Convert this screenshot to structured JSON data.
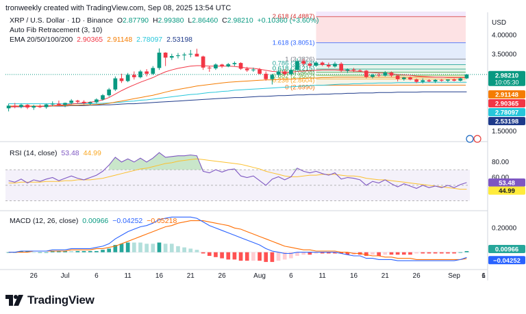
{
  "credit": "tronweekly created with TradingView.com, Sep 08, 2025 13:54 UTC",
  "symbol_line": {
    "symbol": "XRP / U.S. Dollar · 1D · Binance",
    "o_label": "O",
    "o": "2.87790",
    "h_label": "H",
    "h": "2.99380",
    "l_label": "L",
    "l": "2.86460",
    "c_label": "C",
    "c": "2.98210",
    "change": "+0.10360 (+3.60%)"
  },
  "fib_line": "Auto Fib Retracement (3, 10)",
  "ema_line": {
    "label": "EMA 20/50/100/200",
    "v20": "2.90365",
    "v50": "2.91148",
    "v100": "2.78097",
    "v200": "2.53198"
  },
  "rsi_line": {
    "label": "RSI (14, close)",
    "rsi": "53.48",
    "ma": "44.99"
  },
  "macd_line": {
    "label": "MACD (12, 26, close)",
    "hist": "0.00966",
    "macd": "−0.04252",
    "signal": "−0.05218"
  },
  "price_axis": {
    "currency": "USD",
    "ticks": [
      "4.00000",
      "3.50000",
      "1.50000"
    ]
  },
  "rsi_axis": {
    "ticks": [
      "80.00",
      "60.00"
    ]
  },
  "macd_axis": {
    "ticks": [
      "0.20000"
    ]
  },
  "price_tags": [
    {
      "value": "2.98210",
      "sub": "10:05:30",
      "color": "#089981"
    },
    {
      "value": "2.91148",
      "color": "#f57c00"
    },
    {
      "value": "2.90365",
      "color": "#f23645"
    },
    {
      "value": "2.78097",
      "color": "#26c6da"
    },
    {
      "value": "2.53198",
      "color": "#1e3a8a"
    }
  ],
  "rsi_tags": [
    {
      "value": "53.48",
      "color": "#7e57c2"
    },
    {
      "value": "44.99",
      "color": "#ffeb3b"
    }
  ],
  "macd_tags": [
    {
      "value": "0.00966",
      "color": "#26a69a"
    },
    {
      "value": "−0.04252",
      "color": "#2962ff"
    }
  ],
  "fib_labels": [
    {
      "label": "2.618 (4.4887)",
      "price": 4.4887
    },
    {
      "label": "1.618 (3.8051)",
      "price": 3.8051
    },
    {
      "label": "1 (3.3826)",
      "price": 3.3826
    },
    {
      "label": "0.786 (3.2363)",
      "price": 3.2363
    },
    {
      "label": "0.618 (3.1215)",
      "price": 3.1215
    },
    {
      "label": "0.5 (3.0408)",
      "price": 3.0408
    },
    {
      "label": "0.382 (2.9602)",
      "price": 2.9602
    },
    {
      "label": "0.236 (2.8604)",
      "price": 2.8604
    },
    {
      "label": "0 (2.6990)",
      "price": 2.699
    }
  ],
  "x_axis": {
    "ticks": [
      "26",
      "Jul",
      "6",
      "11",
      "16",
      "21",
      "26",
      "Aug",
      "6",
      "11",
      "16",
      "21",
      "26",
      "Sep",
      "6",
      "1"
    ]
  },
  "brand": "TradingView",
  "colors": {
    "up": "#089981",
    "down": "#f23645",
    "ema20": "#f23645",
    "ema50": "#f57c00",
    "ema100": "#26c6da",
    "ema200": "#1e3a8a",
    "rsi": "#7e57c2",
    "rsi_ma": "#fbc02d",
    "macd": "#2962ff",
    "signal": "#ff6d00"
  },
  "chart_data": {
    "type": "candlestick",
    "x_start": "2025-06-22",
    "candles": [
      [
        2.1,
        2.22,
        2.02,
        2.17
      ],
      [
        2.17,
        2.24,
        2.1,
        2.14
      ],
      [
        2.14,
        2.22,
        2.1,
        2.19
      ],
      [
        2.19,
        2.21,
        2.08,
        2.12
      ],
      [
        2.12,
        2.19,
        2.06,
        2.16
      ],
      [
        2.16,
        2.2,
        2.11,
        2.13
      ],
      [
        2.13,
        2.22,
        2.09,
        2.2
      ],
      [
        2.2,
        2.28,
        2.15,
        2.22
      ],
      [
        2.22,
        2.3,
        2.17,
        2.19
      ],
      [
        2.19,
        2.25,
        2.13,
        2.24
      ],
      [
        2.24,
        2.34,
        2.2,
        2.3
      ],
      [
        2.3,
        2.32,
        2.24,
        2.27
      ],
      [
        2.27,
        2.31,
        2.2,
        2.23
      ],
      [
        2.23,
        2.28,
        2.18,
        2.26
      ],
      [
        2.26,
        2.36,
        2.22,
        2.33
      ],
      [
        2.33,
        2.47,
        2.3,
        2.44
      ],
      [
        2.44,
        2.63,
        2.4,
        2.59
      ],
      [
        2.59,
        2.93,
        2.55,
        2.88
      ],
      [
        2.88,
        3.0,
        2.76,
        2.81
      ],
      [
        2.81,
        3.02,
        2.78,
        2.97
      ],
      [
        2.97,
        3.06,
        2.85,
        2.91
      ],
      [
        2.91,
        3.1,
        2.88,
        3.06
      ],
      [
        3.06,
        3.12,
        2.93,
        3.0
      ],
      [
        3.0,
        3.2,
        2.97,
        3.15
      ],
      [
        3.15,
        3.66,
        3.1,
        3.55
      ],
      [
        3.55,
        3.56,
        3.2,
        3.42
      ],
      [
        3.42,
        3.52,
        3.36,
        3.46
      ],
      [
        3.46,
        3.54,
        3.4,
        3.48
      ],
      [
        3.48,
        3.55,
        3.35,
        3.5
      ],
      [
        3.5,
        3.62,
        3.43,
        3.52
      ],
      [
        3.52,
        3.65,
        3.45,
        3.45
      ],
      [
        3.45,
        3.47,
        3.1,
        3.16
      ],
      [
        3.16,
        3.2,
        3.05,
        3.14
      ],
      [
        3.14,
        3.27,
        3.1,
        3.24
      ],
      [
        3.24,
        3.26,
        3.15,
        3.19
      ],
      [
        3.19,
        3.28,
        3.17,
        3.25
      ],
      [
        3.25,
        3.32,
        3.2,
        3.28
      ],
      [
        3.28,
        3.3,
        3.1,
        3.13
      ],
      [
        3.13,
        3.18,
        3.05,
        3.09
      ],
      [
        3.09,
        3.16,
        3.05,
        3.11
      ],
      [
        3.11,
        3.15,
        2.98,
        3.0
      ],
      [
        3.0,
        3.06,
        2.82,
        2.86
      ],
      [
        2.86,
        3.0,
        2.72,
        2.97
      ],
      [
        2.97,
        3.1,
        2.91,
        3.06
      ],
      [
        3.06,
        3.12,
        2.95,
        2.99
      ],
      [
        2.99,
        3.14,
        2.96,
        3.1
      ],
      [
        3.1,
        3.4,
        3.05,
        3.33
      ],
      [
        3.33,
        3.38,
        3.2,
        3.26
      ],
      [
        3.26,
        3.3,
        3.16,
        3.21
      ],
      [
        3.21,
        3.33,
        3.18,
        3.29
      ],
      [
        3.29,
        3.32,
        3.2,
        3.23
      ],
      [
        3.23,
        3.29,
        3.15,
        3.19
      ],
      [
        3.19,
        3.31,
        3.16,
        3.26
      ],
      [
        3.26,
        3.3,
        3.04,
        3.08
      ],
      [
        3.08,
        3.14,
        3.02,
        3.11
      ],
      [
        3.11,
        3.15,
        3.04,
        3.09
      ],
      [
        3.09,
        3.12,
        3.06,
        3.08
      ],
      [
        3.08,
        3.1,
        2.88,
        2.92
      ],
      [
        2.92,
        3.0,
        2.88,
        2.97
      ],
      [
        2.97,
        3.03,
        2.92,
        2.95
      ],
      [
        2.95,
        3.07,
        2.93,
        3.03
      ],
      [
        3.03,
        3.06,
        2.92,
        2.95
      ],
      [
        2.95,
        2.98,
        2.8,
        2.86
      ],
      [
        2.86,
        2.92,
        2.82,
        2.9
      ],
      [
        2.9,
        2.93,
        2.83,
        2.85
      ],
      [
        2.85,
        2.88,
        2.76,
        2.79
      ],
      [
        2.79,
        2.88,
        2.75,
        2.83
      ],
      [
        2.83,
        2.86,
        2.78,
        2.8
      ],
      [
        2.8,
        2.86,
        2.76,
        2.84
      ],
      [
        2.84,
        2.87,
        2.79,
        2.82
      ],
      [
        2.82,
        2.85,
        2.78,
        2.85
      ],
      [
        2.85,
        2.88,
        2.8,
        2.82
      ],
      [
        2.82,
        2.9,
        2.8,
        2.88
      ],
      [
        2.88,
        2.99,
        2.86,
        2.98
      ]
    ],
    "ema20": [
      2.14,
      2.14,
      2.15,
      2.15,
      2.15,
      2.15,
      2.16,
      2.17,
      2.18,
      2.19,
      2.21,
      2.23,
      2.24,
      2.26,
      2.28,
      2.32,
      2.38,
      2.47,
      2.56,
      2.64,
      2.71,
      2.78,
      2.84,
      2.9,
      2.98,
      3.05,
      3.1,
      3.14,
      3.17,
      3.2,
      3.21,
      3.21,
      3.2,
      3.2,
      3.2,
      3.2,
      3.19,
      3.17,
      3.15,
      3.14,
      3.12,
      3.09,
      3.06,
      3.05,
      3.04,
      3.04,
      3.06,
      3.07,
      3.08,
      3.09,
      3.1,
      3.1,
      3.1,
      3.09,
      3.08,
      3.07,
      3.06,
      3.04,
      3.03,
      3.02,
      3.02,
      3.0,
      2.98,
      2.97,
      2.96,
      2.94,
      2.93,
      2.92,
      2.91,
      2.91,
      2.9,
      2.9,
      2.9,
      2.9
    ],
    "ema50": [
      2.16,
      2.16,
      2.16,
      2.16,
      2.16,
      2.16,
      2.16,
      2.16,
      2.17,
      2.17,
      2.18,
      2.18,
      2.19,
      2.19,
      2.2,
      2.21,
      2.23,
      2.26,
      2.29,
      2.32,
      2.35,
      2.38,
      2.41,
      2.44,
      2.48,
      2.52,
      2.56,
      2.59,
      2.62,
      2.65,
      2.68,
      2.7,
      2.72,
      2.74,
      2.76,
      2.78,
      2.79,
      2.8,
      2.81,
      2.82,
      2.83,
      2.84,
      2.84,
      2.85,
      2.86,
      2.86,
      2.87,
      2.88,
      2.89,
      2.89,
      2.9,
      2.9,
      2.91,
      2.91,
      2.91,
      2.91,
      2.91,
      2.91,
      2.91,
      2.91,
      2.91,
      2.91,
      2.91,
      2.91,
      2.91,
      2.91,
      2.91,
      2.91,
      2.91,
      2.91,
      2.91,
      2.91,
      2.91,
      2.91
    ],
    "ema100": [
      2.22,
      2.22,
      2.22,
      2.22,
      2.22,
      2.22,
      2.22,
      2.22,
      2.22,
      2.22,
      2.22,
      2.22,
      2.22,
      2.22,
      2.23,
      2.23,
      2.24,
      2.25,
      2.26,
      2.28,
      2.29,
      2.31,
      2.32,
      2.34,
      2.36,
      2.38,
      2.4,
      2.42,
      2.44,
      2.46,
      2.47,
      2.49,
      2.51,
      2.52,
      2.54,
      2.55,
      2.57,
      2.58,
      2.59,
      2.6,
      2.61,
      2.62,
      2.63,
      2.64,
      2.65,
      2.66,
      2.67,
      2.68,
      2.69,
      2.7,
      2.7,
      2.71,
      2.72,
      2.73,
      2.73,
      2.74,
      2.74,
      2.75,
      2.75,
      2.76,
      2.76,
      2.76,
      2.77,
      2.77,
      2.77,
      2.77,
      2.78,
      2.78,
      2.78,
      2.78,
      2.78,
      2.78,
      2.78,
      2.78
    ],
    "ema200": [
      2.14,
      2.14,
      2.14,
      2.15,
      2.15,
      2.15,
      2.15,
      2.16,
      2.16,
      2.16,
      2.17,
      2.17,
      2.17,
      2.18,
      2.18,
      2.19,
      2.19,
      2.2,
      2.21,
      2.22,
      2.22,
      2.23,
      2.24,
      2.25,
      2.26,
      2.27,
      2.28,
      2.29,
      2.3,
      2.31,
      2.32,
      2.33,
      2.34,
      2.35,
      2.36,
      2.37,
      2.38,
      2.38,
      2.39,
      2.4,
      2.41,
      2.41,
      2.42,
      2.43,
      2.43,
      2.44,
      2.45,
      2.45,
      2.46,
      2.46,
      2.47,
      2.47,
      2.48,
      2.48,
      2.49,
      2.49,
      2.5,
      2.5,
      2.5,
      2.51,
      2.51,
      2.51,
      2.52,
      2.52,
      2.52,
      2.52,
      2.53,
      2.53,
      2.53,
      2.53,
      2.53,
      2.53,
      2.53,
      2.53
    ],
    "rsi": [
      56,
      54,
      58,
      53,
      57,
      55,
      58,
      60,
      56,
      59,
      62,
      59,
      57,
      60,
      63,
      68,
      76,
      86,
      80,
      84,
      80,
      85,
      80,
      85,
      92,
      86,
      87,
      88,
      88,
      89,
      88,
      68,
      66,
      70,
      67,
      70,
      71,
      62,
      60,
      62,
      56,
      50,
      58,
      61,
      57,
      61,
      72,
      68,
      66,
      68,
      65,
      63,
      66,
      58,
      60,
      59,
      57,
      50,
      55,
      53,
      57,
      52,
      48,
      52,
      49,
      46,
      50,
      47,
      49,
      47,
      50,
      47,
      51,
      53.48
    ],
    "rsi_ma": [
      53,
      53,
      54,
      54,
      54,
      54,
      55,
      55,
      55,
      56,
      56,
      57,
      57,
      57,
      58,
      59,
      61,
      63,
      65,
      67,
      69,
      71,
      72,
      74,
      76,
      78,
      79,
      81,
      82,
      83,
      84,
      83,
      82,
      81,
      80,
      79,
      78,
      77,
      75,
      73,
      71,
      68,
      66,
      64,
      62,
      61,
      61,
      62,
      63,
      63,
      64,
      64,
      64,
      63,
      62,
      62,
      61,
      59,
      58,
      57,
      57,
      56,
      55,
      54,
      53,
      52,
      51,
      50,
      49,
      48,
      47,
      46,
      45,
      44.99
    ],
    "macd": [
      0.0,
      0.0,
      0.01,
      0.01,
      0.01,
      0.01,
      0.01,
      0.02,
      0.02,
      0.02,
      0.03,
      0.03,
      0.03,
      0.03,
      0.04,
      0.05,
      0.07,
      0.11,
      0.14,
      0.17,
      0.19,
      0.21,
      0.22,
      0.24,
      0.27,
      0.28,
      0.29,
      0.29,
      0.29,
      0.29,
      0.28,
      0.25,
      0.22,
      0.2,
      0.18,
      0.16,
      0.14,
      0.12,
      0.1,
      0.08,
      0.06,
      0.03,
      0.01,
      0.0,
      -0.01,
      -0.01,
      0.0,
      0.0,
      0.0,
      0.0,
      0.0,
      0.0,
      0.0,
      -0.01,
      -0.02,
      -0.03,
      -0.03,
      -0.05,
      -0.05,
      -0.06,
      -0.06,
      -0.06,
      -0.07,
      -0.07,
      -0.07,
      -0.07,
      -0.07,
      -0.07,
      -0.07,
      -0.07,
      -0.07,
      -0.07,
      -0.06,
      -0.04252
    ],
    "signal": [
      0.0,
      0.0,
      0.0,
      0.0,
      0.01,
      0.01,
      0.01,
      0.01,
      0.01,
      0.01,
      0.02,
      0.02,
      0.02,
      0.02,
      0.03,
      0.03,
      0.04,
      0.05,
      0.07,
      0.09,
      0.11,
      0.13,
      0.15,
      0.17,
      0.19,
      0.21,
      0.22,
      0.24,
      0.25,
      0.26,
      0.26,
      0.26,
      0.25,
      0.24,
      0.23,
      0.22,
      0.2,
      0.19,
      0.17,
      0.15,
      0.13,
      0.11,
      0.09,
      0.07,
      0.05,
      0.04,
      0.03,
      0.02,
      0.02,
      0.01,
      0.01,
      0.01,
      0.01,
      0.0,
      0.0,
      -0.01,
      -0.01,
      -0.02,
      -0.03,
      -0.03,
      -0.04,
      -0.04,
      -0.05,
      -0.05,
      -0.05,
      -0.06,
      -0.06,
      -0.06,
      -0.06,
      -0.06,
      -0.06,
      -0.06,
      -0.06,
      -0.05218
    ],
    "fib_levels": [
      4.4887,
      3.8051,
      3.3826,
      3.2363,
      3.1215,
      3.0408,
      2.9602,
      2.8604,
      2.699
    ],
    "price_range": [
      1.5,
      4.6
    ],
    "rsi_range": [
      20,
      100
    ],
    "macd_range": [
      -0.12,
      0.32
    ]
  }
}
